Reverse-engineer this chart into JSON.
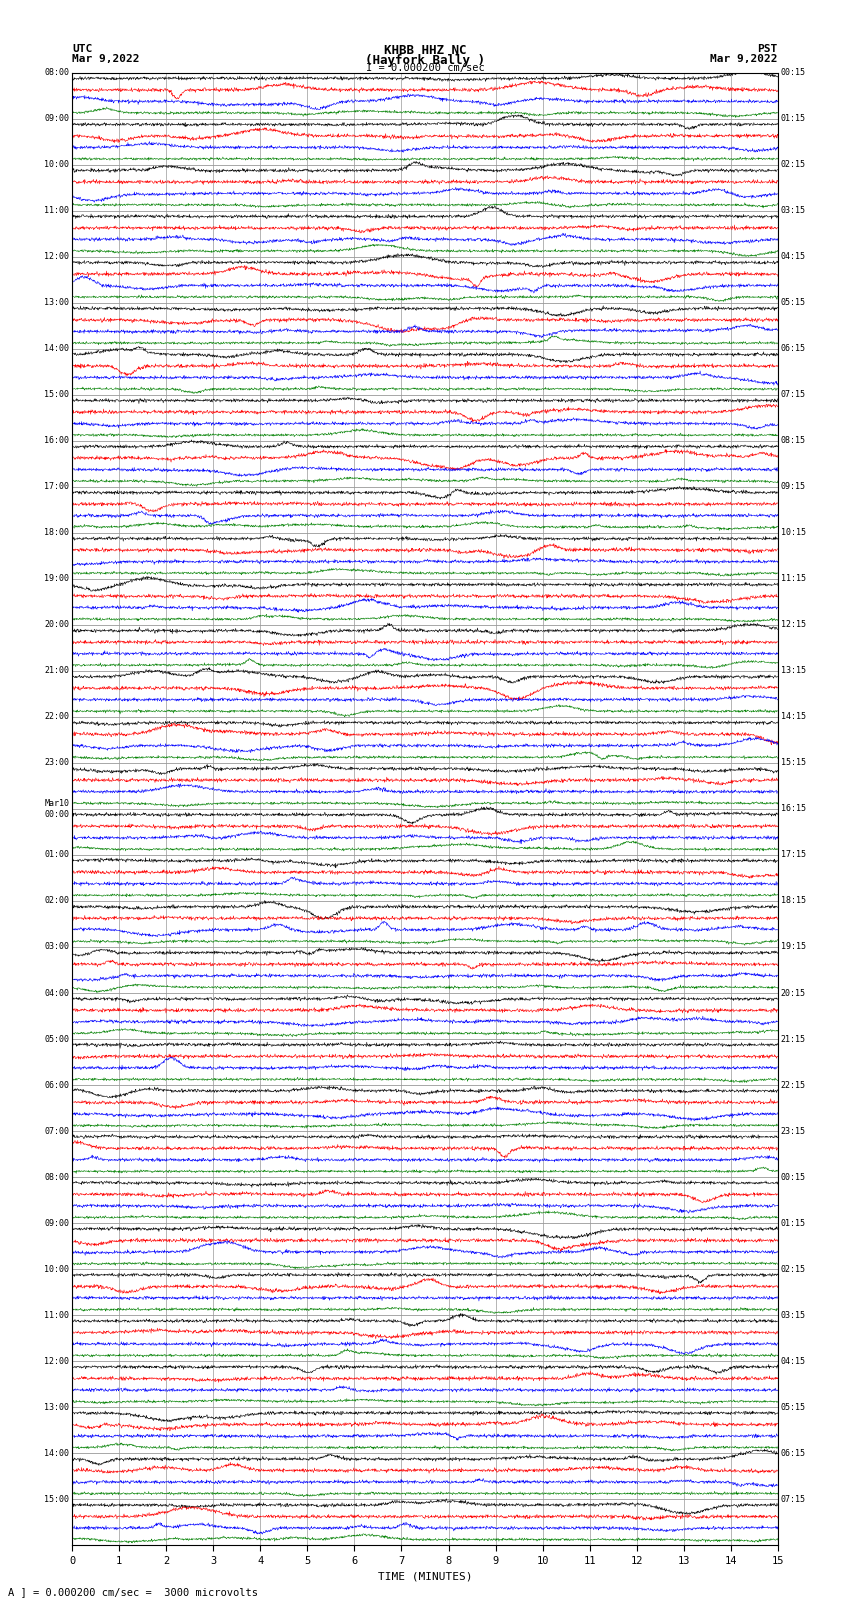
{
  "title_line1": "KHBB HHZ NC",
  "title_line2": "(Hayfork Bally )",
  "scale_label": "I = 0.000200 cm/sec",
  "left_label_top": "UTC",
  "left_label_date": "Mar 9,2022",
  "right_label_top": "PST",
  "right_label_date": "Mar 9,2022",
  "xlabel": "TIME (MINUTES)",
  "footer": "A ] = 0.000200 cm/sec =  3000 microvolts",
  "bg_color": "#ffffff",
  "colors": [
    "black",
    "red",
    "blue",
    "green"
  ],
  "num_rows": 32,
  "minutes": 15,
  "grid_color": "#999999",
  "figwidth": 8.5,
  "figheight": 16.13,
  "dpi": 100,
  "utc_labels": [
    "08:00",
    "09:00",
    "10:00",
    "11:00",
    "12:00",
    "13:00",
    "14:00",
    "15:00",
    "16:00",
    "17:00",
    "18:00",
    "19:00",
    "20:00",
    "21:00",
    "22:00",
    "23:00",
    "Mar10\n00:00",
    "01:00",
    "02:00",
    "03:00",
    "04:00",
    "05:00",
    "06:00",
    "07:00",
    "08:00",
    "09:00",
    "10:00",
    "11:00",
    "12:00",
    "13:00",
    "14:00",
    "15:00"
  ],
  "pst_labels": [
    "00:15",
    "01:15",
    "02:15",
    "03:15",
    "04:15",
    "05:15",
    "06:15",
    "07:15",
    "08:15",
    "09:15",
    "10:15",
    "11:15",
    "12:15",
    "13:15",
    "14:15",
    "15:15",
    "16:15",
    "17:15",
    "18:15",
    "19:15",
    "20:15",
    "21:15",
    "22:15",
    "23:15",
    "00:15",
    "01:15",
    "02:15",
    "03:15",
    "04:15",
    "05:15",
    "06:15",
    "07:15"
  ]
}
